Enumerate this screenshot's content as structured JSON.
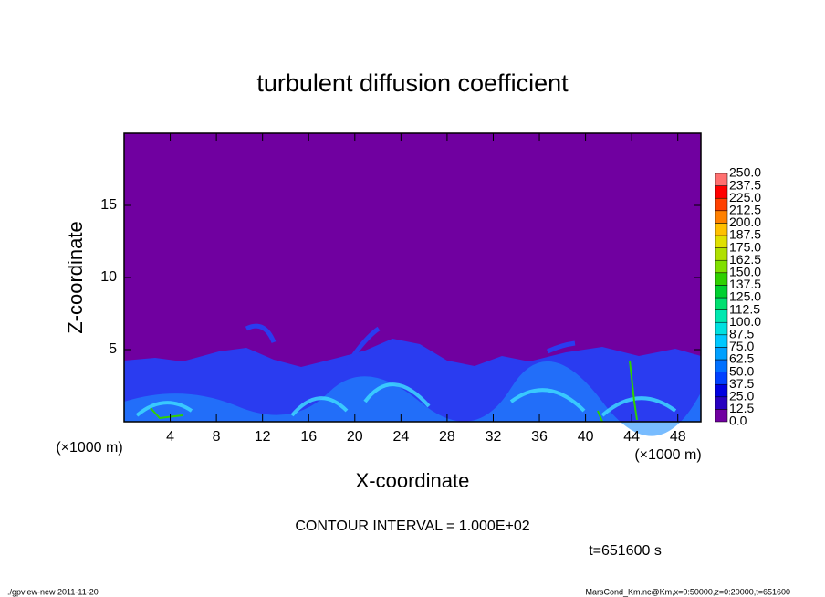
{
  "chart_data": {
    "type": "contour",
    "title": "turbulent diffusion coefficient",
    "xlabel": "X-coordinate",
    "ylabel": "Z-coordinate",
    "x_unit": "(×1000 m)",
    "y_unit": "(×1000 m)",
    "xlim": [
      0,
      50
    ],
    "xticks": [
      4,
      8,
      12,
      16,
      20,
      24,
      28,
      32,
      36,
      40,
      44,
      48
    ],
    "ylim": [
      0,
      20
    ],
    "yticks": [
      5,
      10,
      15
    ],
    "levels": [
      {
        "value": 0,
        "label": "0.0"
      },
      {
        "value": 12.5,
        "label": "12.5"
      },
      {
        "value": 25,
        "label": "25.0"
      },
      {
        "value": 37.5,
        "label": "37.5"
      },
      {
        "value": 50,
        "label": "50.0"
      },
      {
        "value": 62.5,
        "label": "62.5"
      },
      {
        "value": 75,
        "label": "75.0"
      },
      {
        "value": 87.5,
        "label": "87.5"
      },
      {
        "value": 100,
        "label": "100.0"
      },
      {
        "value": 112.5,
        "label": "112.5"
      },
      {
        "value": 125,
        "label": "125.0"
      },
      {
        "value": 137.5,
        "label": "137.5"
      },
      {
        "value": 150,
        "label": "150.0"
      },
      {
        "value": 162.5,
        "label": "162.5"
      },
      {
        "value": 175,
        "label": "175.0"
      },
      {
        "value": 187.5,
        "label": "187.5"
      },
      {
        "value": 200,
        "label": "200.0"
      },
      {
        "value": 212.5,
        "label": "212.5"
      },
      {
        "value": 225,
        "label": "225.0"
      },
      {
        "value": 237.5,
        "label": "237.5"
      },
      {
        "value": 250,
        "label": "250.0"
      }
    ],
    "colors": [
      "#7000a0",
      "#2800c0",
      "#0000e0",
      "#0040ff",
      "#0070ff",
      "#00a0ff",
      "#00c8ff",
      "#00e0e0",
      "#00e8b0",
      "#00e070",
      "#00d030",
      "#30d000",
      "#80e000",
      "#b0e000",
      "#e0e000",
      "#ffc000",
      "#ff8000",
      "#ff4000",
      "#ff0000",
      "#ff7070"
    ],
    "contour_interval": "CONTOUR INTERVAL = 1.000E+02",
    "time": "t=651600 s",
    "footer_left": "./gpview-new   2011-11-20",
    "footer_right": "MarsCond_Km.nc@Km,x=0:50000,z=0:20000,t=651600"
  }
}
